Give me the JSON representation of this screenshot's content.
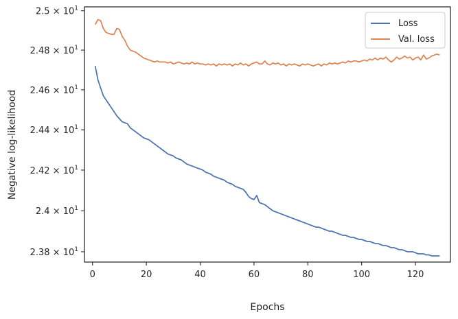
{
  "chart_data": {
    "type": "line",
    "xlabel": "Epochs",
    "ylabel": "Negative log-likelihood",
    "y_scale": "log",
    "xlim": [
      -3,
      133
    ],
    "ylim": [
      23.75,
      25.02
    ],
    "xticks": [
      {
        "value": 0,
        "label": "0"
      },
      {
        "value": 20,
        "label": "20"
      },
      {
        "value": 40,
        "label": "40"
      },
      {
        "value": 60,
        "label": "60"
      },
      {
        "value": 80,
        "label": "80"
      },
      {
        "value": 100,
        "label": "100"
      },
      {
        "value": 120,
        "label": "120"
      }
    ],
    "yticks": [
      {
        "value": 23.8,
        "base": "2.38",
        "exp": "1"
      },
      {
        "value": 24.0,
        "base": "2.4",
        "exp": "1"
      },
      {
        "value": 24.2,
        "base": "2.42",
        "exp": "1"
      },
      {
        "value": 24.4,
        "base": "2.44",
        "exp": "1"
      },
      {
        "value": 24.6,
        "base": "2.46",
        "exp": "1"
      },
      {
        "value": 24.8,
        "base": "2.48",
        "exp": "1"
      },
      {
        "value": 25.0,
        "base": "2.5",
        "exp": "1"
      }
    ],
    "legend_position": "top-right",
    "series": [
      {
        "name": "Loss",
        "color": "#4c72b0",
        "points": [
          [
            1,
            24.72
          ],
          [
            2,
            24.65
          ],
          [
            3,
            24.61
          ],
          [
            4,
            24.57
          ],
          [
            5,
            24.55
          ],
          [
            6,
            24.53
          ],
          [
            7,
            24.51
          ],
          [
            8,
            24.49
          ],
          [
            9,
            24.47
          ],
          [
            10,
            24.455
          ],
          [
            11,
            24.44
          ],
          [
            12,
            24.435
          ],
          [
            13,
            24.43
          ],
          [
            14,
            24.41
          ],
          [
            15,
            24.4
          ],
          [
            16,
            24.39
          ],
          [
            17,
            24.38
          ],
          [
            18,
            24.37
          ],
          [
            19,
            24.36
          ],
          [
            20,
            24.355
          ],
          [
            21,
            24.35
          ],
          [
            22,
            24.34
          ],
          [
            23,
            24.33
          ],
          [
            24,
            24.32
          ],
          [
            25,
            24.31
          ],
          [
            26,
            24.3
          ],
          [
            27,
            24.29
          ],
          [
            28,
            24.28
          ],
          [
            29,
            24.275
          ],
          [
            30,
            24.27
          ],
          [
            31,
            24.26
          ],
          [
            32,
            24.255
          ],
          [
            33,
            24.25
          ],
          [
            34,
            24.24
          ],
          [
            35,
            24.23
          ],
          [
            36,
            24.225
          ],
          [
            37,
            24.22
          ],
          [
            38,
            24.215
          ],
          [
            39,
            24.21
          ],
          [
            40,
            24.205
          ],
          [
            41,
            24.2
          ],
          [
            42,
            24.19
          ],
          [
            43,
            24.185
          ],
          [
            44,
            24.18
          ],
          [
            45,
            24.17
          ],
          [
            46,
            24.165
          ],
          [
            47,
            24.16
          ],
          [
            48,
            24.155
          ],
          [
            49,
            24.15
          ],
          [
            50,
            24.14
          ],
          [
            51,
            24.135
          ],
          [
            52,
            24.13
          ],
          [
            53,
            24.12
          ],
          [
            54,
            24.115
          ],
          [
            55,
            24.11
          ],
          [
            56,
            24.105
          ],
          [
            57,
            24.09
          ],
          [
            58,
            24.07
          ],
          [
            59,
            24.06
          ],
          [
            60,
            24.055
          ],
          [
            61,
            24.075
          ],
          [
            62,
            24.04
          ],
          [
            63,
            24.035
          ],
          [
            64,
            24.03
          ],
          [
            65,
            24.02
          ],
          [
            66,
            24.01
          ],
          [
            67,
            24.0
          ],
          [
            68,
            23.995
          ],
          [
            69,
            23.99
          ],
          [
            70,
            23.985
          ],
          [
            71,
            23.98
          ],
          [
            72,
            23.975
          ],
          [
            73,
            23.97
          ],
          [
            74,
            23.965
          ],
          [
            75,
            23.96
          ],
          [
            76,
            23.955
          ],
          [
            77,
            23.95
          ],
          [
            78,
            23.945
          ],
          [
            79,
            23.94
          ],
          [
            80,
            23.935
          ],
          [
            81,
            23.93
          ],
          [
            82,
            23.925
          ],
          [
            83,
            23.92
          ],
          [
            84,
            23.92
          ],
          [
            85,
            23.915
          ],
          [
            86,
            23.91
          ],
          [
            87,
            23.905
          ],
          [
            88,
            23.9
          ],
          [
            89,
            23.9
          ],
          [
            90,
            23.895
          ],
          [
            91,
            23.89
          ],
          [
            92,
            23.885
          ],
          [
            93,
            23.88
          ],
          [
            94,
            23.88
          ],
          [
            95,
            23.875
          ],
          [
            96,
            23.87
          ],
          [
            97,
            23.87
          ],
          [
            98,
            23.865
          ],
          [
            99,
            23.86
          ],
          [
            100,
            23.86
          ],
          [
            101,
            23.855
          ],
          [
            102,
            23.85
          ],
          [
            103,
            23.85
          ],
          [
            104,
            23.845
          ],
          [
            105,
            23.84
          ],
          [
            106,
            23.84
          ],
          [
            107,
            23.835
          ],
          [
            108,
            23.83
          ],
          [
            109,
            23.83
          ],
          [
            110,
            23.825
          ],
          [
            111,
            23.82
          ],
          [
            112,
            23.82
          ],
          [
            113,
            23.815
          ],
          [
            114,
            23.81
          ],
          [
            115,
            23.81
          ],
          [
            116,
            23.805
          ],
          [
            117,
            23.8
          ],
          [
            118,
            23.8
          ],
          [
            119,
            23.8
          ],
          [
            120,
            23.795
          ],
          [
            121,
            23.79
          ],
          [
            122,
            23.79
          ],
          [
            123,
            23.79
          ],
          [
            124,
            23.785
          ],
          [
            125,
            23.785
          ],
          [
            126,
            23.78
          ],
          [
            127,
            23.78
          ],
          [
            128,
            23.78
          ],
          [
            129,
            23.78
          ]
        ]
      },
      {
        "name": "Val. loss",
        "color": "#dd8452",
        "points": [
          [
            1,
            24.93
          ],
          [
            2,
            24.955
          ],
          [
            3,
            24.95
          ],
          [
            4,
            24.91
          ],
          [
            5,
            24.89
          ],
          [
            6,
            24.885
          ],
          [
            7,
            24.88
          ],
          [
            8,
            24.88
          ],
          [
            9,
            24.91
          ],
          [
            10,
            24.905
          ],
          [
            11,
            24.87
          ],
          [
            12,
            24.85
          ],
          [
            13,
            24.82
          ],
          [
            14,
            24.8
          ],
          [
            15,
            24.795
          ],
          [
            16,
            24.79
          ],
          [
            17,
            24.78
          ],
          [
            18,
            24.77
          ],
          [
            19,
            24.76
          ],
          [
            20,
            24.755
          ],
          [
            21,
            24.75
          ],
          [
            22,
            24.745
          ],
          [
            23,
            24.74
          ],
          [
            24,
            24.745
          ],
          [
            25,
            24.74
          ],
          [
            26,
            24.74
          ],
          [
            27,
            24.74
          ],
          [
            28,
            24.735
          ],
          [
            29,
            24.74
          ],
          [
            30,
            24.73
          ],
          [
            31,
            24.735
          ],
          [
            32,
            24.74
          ],
          [
            33,
            24.735
          ],
          [
            34,
            24.73
          ],
          [
            35,
            24.735
          ],
          [
            36,
            24.73
          ],
          [
            37,
            24.74
          ],
          [
            38,
            24.73
          ],
          [
            39,
            24.735
          ],
          [
            40,
            24.73
          ],
          [
            41,
            24.73
          ],
          [
            42,
            24.725
          ],
          [
            43,
            24.73
          ],
          [
            44,
            24.725
          ],
          [
            45,
            24.73
          ],
          [
            46,
            24.72
          ],
          [
            47,
            24.73
          ],
          [
            48,
            24.725
          ],
          [
            49,
            24.73
          ],
          [
            50,
            24.725
          ],
          [
            51,
            24.73
          ],
          [
            52,
            24.72
          ],
          [
            53,
            24.73
          ],
          [
            54,
            24.725
          ],
          [
            55,
            24.735
          ],
          [
            56,
            24.725
          ],
          [
            57,
            24.73
          ],
          [
            58,
            24.72
          ],
          [
            59,
            24.73
          ],
          [
            60,
            24.735
          ],
          [
            61,
            24.74
          ],
          [
            62,
            24.73
          ],
          [
            63,
            24.73
          ],
          [
            64,
            24.745
          ],
          [
            65,
            24.73
          ],
          [
            66,
            24.725
          ],
          [
            67,
            24.735
          ],
          [
            68,
            24.73
          ],
          [
            69,
            24.735
          ],
          [
            70,
            24.725
          ],
          [
            71,
            24.73
          ],
          [
            72,
            24.72
          ],
          [
            73,
            24.73
          ],
          [
            74,
            24.725
          ],
          [
            75,
            24.73
          ],
          [
            76,
            24.725
          ],
          [
            77,
            24.72
          ],
          [
            78,
            24.73
          ],
          [
            79,
            24.725
          ],
          [
            80,
            24.73
          ],
          [
            81,
            24.725
          ],
          [
            82,
            24.72
          ],
          [
            83,
            24.725
          ],
          [
            84,
            24.73
          ],
          [
            85,
            24.72
          ],
          [
            86,
            24.73
          ],
          [
            87,
            24.725
          ],
          [
            88,
            24.735
          ],
          [
            89,
            24.73
          ],
          [
            90,
            24.735
          ],
          [
            91,
            24.73
          ],
          [
            92,
            24.735
          ],
          [
            93,
            24.74
          ],
          [
            94,
            24.735
          ],
          [
            95,
            24.745
          ],
          [
            96,
            24.74
          ],
          [
            97,
            24.745
          ],
          [
            98,
            24.745
          ],
          [
            99,
            24.74
          ],
          [
            100,
            24.745
          ],
          [
            101,
            24.75
          ],
          [
            102,
            24.745
          ],
          [
            103,
            24.755
          ],
          [
            104,
            24.75
          ],
          [
            105,
            24.76
          ],
          [
            106,
            24.75
          ],
          [
            107,
            24.76
          ],
          [
            108,
            24.755
          ],
          [
            109,
            24.765
          ],
          [
            110,
            24.75
          ],
          [
            111,
            24.74
          ],
          [
            112,
            24.75
          ],
          [
            113,
            24.765
          ],
          [
            114,
            24.755
          ],
          [
            115,
            24.76
          ],
          [
            116,
            24.77
          ],
          [
            117,
            24.76
          ],
          [
            118,
            24.765
          ],
          [
            119,
            24.75
          ],
          [
            120,
            24.76
          ],
          [
            121,
            24.765
          ],
          [
            122,
            24.75
          ],
          [
            123,
            24.775
          ],
          [
            124,
            24.755
          ],
          [
            125,
            24.76
          ],
          [
            126,
            24.77
          ],
          [
            127,
            24.775
          ],
          [
            128,
            24.78
          ],
          [
            129,
            24.775
          ]
        ]
      }
    ]
  }
}
